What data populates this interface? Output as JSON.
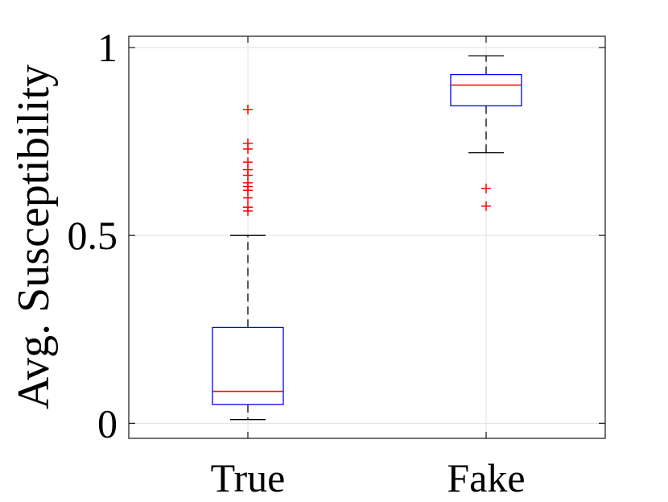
{
  "chart_data": {
    "type": "box",
    "title": "",
    "xlabel": "",
    "ylabel": "Avg. Susceptibility",
    "ylim": [
      -0.04,
      1.03
    ],
    "yticks": [
      0,
      0.5,
      1
    ],
    "ytick_labels": [
      "0",
      "0.5",
      "1"
    ],
    "grid": true,
    "categories": [
      "True",
      "Fake"
    ],
    "boxes": [
      {
        "category": "True",
        "whisker_low": 0.01,
        "q1": 0.05,
        "median": 0.085,
        "q3": 0.255,
        "whisker_high": 0.5,
        "outliers": [
          0.565,
          0.575,
          0.6,
          0.62,
          0.63,
          0.64,
          0.66,
          0.675,
          0.695,
          0.73,
          0.745,
          0.835
        ]
      },
      {
        "category": "Fake",
        "whisker_low": 0.72,
        "q1": 0.845,
        "median": 0.9,
        "q3": 0.928,
        "whisker_high": 0.978,
        "outliers": [
          0.578,
          0.625
        ]
      }
    ]
  },
  "colors": {
    "box_edge": "#0000ff",
    "median": "#ff0000",
    "outlier": "#ff0000",
    "whisker": "#000000",
    "grid": "#e0e0e0",
    "axes": "#262626"
  }
}
